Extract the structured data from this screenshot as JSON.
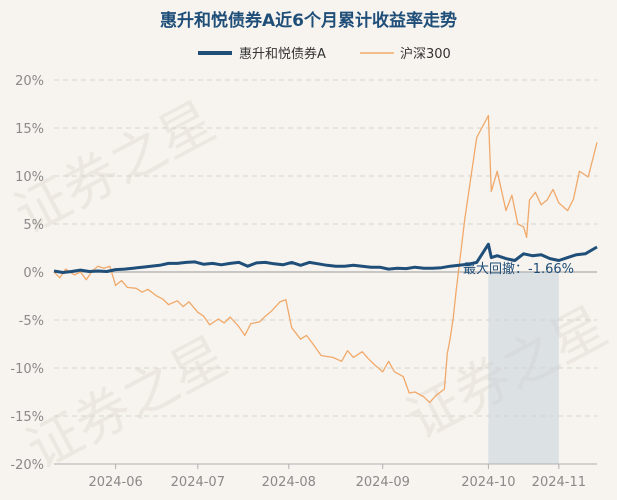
{
  "chart_data": {
    "type": "line",
    "title": "惠升和悦债券A近6个月累计收益率走势",
    "watermark": "证券之星",
    "ylim": [
      -20,
      20
    ],
    "yticks": [
      20,
      15,
      10,
      5,
      0,
      -5,
      -10,
      -15,
      -20
    ],
    "ytick_format": "{v}%",
    "x_start": "2024-05-13",
    "x_end": "2024-11-14",
    "xticks": [
      {
        "date": "2024-06-03",
        "label": "2024-06"
      },
      {
        "date": "2024-07-01",
        "label": "2024-07"
      },
      {
        "date": "2024-08-01",
        "label": "2024-08"
      },
      {
        "date": "2024-09-02",
        "label": "2024-09"
      },
      {
        "date": "2024-10-08",
        "label": "2024-10"
      },
      {
        "date": "2024-11-01",
        "label": "2024-11"
      }
    ],
    "series": [
      {
        "name": "惠升和悦债券A",
        "color": "#1f4e79",
        "points": [
          [
            "2024-05-13",
            0.1
          ],
          [
            "2024-05-16",
            -0.05
          ],
          [
            "2024-05-19",
            0.05
          ],
          [
            "2024-05-22",
            0.2
          ],
          [
            "2024-05-25",
            0.05
          ],
          [
            "2024-05-28",
            0.1
          ],
          [
            "2024-05-31",
            0.05
          ],
          [
            "2024-06-03",
            0.25
          ],
          [
            "2024-06-06",
            0.3
          ],
          [
            "2024-06-09",
            0.4
          ],
          [
            "2024-06-12",
            0.5
          ],
          [
            "2024-06-15",
            0.6
          ],
          [
            "2024-06-18",
            0.7
          ],
          [
            "2024-06-21",
            0.9
          ],
          [
            "2024-06-24",
            0.9
          ],
          [
            "2024-06-27",
            1.0
          ],
          [
            "2024-06-30",
            1.05
          ],
          [
            "2024-07-03",
            0.8
          ],
          [
            "2024-07-06",
            0.9
          ],
          [
            "2024-07-09",
            0.75
          ],
          [
            "2024-07-12",
            0.9
          ],
          [
            "2024-07-15",
            1.0
          ],
          [
            "2024-07-18",
            0.6
          ],
          [
            "2024-07-21",
            0.95
          ],
          [
            "2024-07-24",
            1.0
          ],
          [
            "2024-07-27",
            0.85
          ],
          [
            "2024-07-30",
            0.75
          ],
          [
            "2024-08-02",
            1.0
          ],
          [
            "2024-08-05",
            0.7
          ],
          [
            "2024-08-08",
            1.0
          ],
          [
            "2024-08-11",
            0.85
          ],
          [
            "2024-08-14",
            0.7
          ],
          [
            "2024-08-17",
            0.6
          ],
          [
            "2024-08-20",
            0.6
          ],
          [
            "2024-08-23",
            0.7
          ],
          [
            "2024-08-26",
            0.6
          ],
          [
            "2024-08-29",
            0.5
          ],
          [
            "2024-09-01",
            0.5
          ],
          [
            "2024-09-04",
            0.3
          ],
          [
            "2024-09-07",
            0.4
          ],
          [
            "2024-09-10",
            0.35
          ],
          [
            "2024-09-13",
            0.5
          ],
          [
            "2024-09-16",
            0.4
          ],
          [
            "2024-09-19",
            0.4
          ],
          [
            "2024-09-22",
            0.45
          ],
          [
            "2024-09-25",
            0.6
          ],
          [
            "2024-09-28",
            0.7
          ],
          [
            "2024-10-01",
            0.8
          ],
          [
            "2024-10-04",
            1.0
          ],
          [
            "2024-10-08",
            2.9
          ],
          [
            "2024-10-09",
            1.5
          ],
          [
            "2024-10-11",
            1.7
          ],
          [
            "2024-10-14",
            1.4
          ],
          [
            "2024-10-17",
            1.2
          ],
          [
            "2024-10-20",
            1.9
          ],
          [
            "2024-10-23",
            1.7
          ],
          [
            "2024-10-26",
            1.8
          ],
          [
            "2024-10-29",
            1.4
          ],
          [
            "2024-11-01",
            1.2
          ],
          [
            "2024-11-04",
            1.5
          ],
          [
            "2024-11-07",
            1.8
          ],
          [
            "2024-11-10",
            1.9
          ],
          [
            "2024-11-14",
            2.6
          ]
        ]
      },
      {
        "name": "沪深300",
        "color": "#f0a96b",
        "points": [
          [
            "2024-05-13",
            0.0
          ],
          [
            "2024-05-15",
            -0.6
          ],
          [
            "2024-05-17",
            0.3
          ],
          [
            "2024-05-20",
            -0.3
          ],
          [
            "2024-05-22",
            0.0
          ],
          [
            "2024-05-24",
            -0.8
          ],
          [
            "2024-05-26",
            0.1
          ],
          [
            "2024-05-28",
            0.6
          ],
          [
            "2024-05-30",
            0.4
          ],
          [
            "2024-06-01",
            0.6
          ],
          [
            "2024-06-03",
            -1.4
          ],
          [
            "2024-06-05",
            -0.9
          ],
          [
            "2024-06-07",
            -1.6
          ],
          [
            "2024-06-10",
            -1.7
          ],
          [
            "2024-06-12",
            -2.1
          ],
          [
            "2024-06-14",
            -1.8
          ],
          [
            "2024-06-17",
            -2.5
          ],
          [
            "2024-06-19",
            -2.8
          ],
          [
            "2024-06-21",
            -3.4
          ],
          [
            "2024-06-24",
            -3.0
          ],
          [
            "2024-06-26",
            -3.6
          ],
          [
            "2024-06-28",
            -3.1
          ],
          [
            "2024-07-01",
            -4.2
          ],
          [
            "2024-07-03",
            -4.6
          ],
          [
            "2024-07-05",
            -5.5
          ],
          [
            "2024-07-08",
            -4.9
          ],
          [
            "2024-07-10",
            -5.3
          ],
          [
            "2024-07-12",
            -4.7
          ],
          [
            "2024-07-15",
            -5.7
          ],
          [
            "2024-07-17",
            -6.6
          ],
          [
            "2024-07-19",
            -5.4
          ],
          [
            "2024-07-22",
            -5.2
          ],
          [
            "2024-07-24",
            -4.6
          ],
          [
            "2024-07-26",
            -4.1
          ],
          [
            "2024-07-29",
            -3.1
          ],
          [
            "2024-07-31",
            -2.9
          ],
          [
            "2024-08-02",
            -5.8
          ],
          [
            "2024-08-05",
            -7.0
          ],
          [
            "2024-08-07",
            -6.6
          ],
          [
            "2024-08-09",
            -7.4
          ],
          [
            "2024-08-12",
            -8.7
          ],
          [
            "2024-08-14",
            -8.8
          ],
          [
            "2024-08-16",
            -8.9
          ],
          [
            "2024-08-19",
            -9.3
          ],
          [
            "2024-08-21",
            -8.2
          ],
          [
            "2024-08-23",
            -8.9
          ],
          [
            "2024-08-26",
            -8.3
          ],
          [
            "2024-08-28",
            -9.0
          ],
          [
            "2024-08-30",
            -9.6
          ],
          [
            "2024-09-02",
            -10.4
          ],
          [
            "2024-09-04",
            -9.3
          ],
          [
            "2024-09-06",
            -10.4
          ],
          [
            "2024-09-09",
            -10.9
          ],
          [
            "2024-09-11",
            -12.6
          ],
          [
            "2024-09-13",
            -12.5
          ],
          [
            "2024-09-16",
            -13.0
          ],
          [
            "2024-09-18",
            -13.6
          ],
          [
            "2024-09-20",
            -12.9
          ],
          [
            "2024-09-23",
            -12.2
          ],
          [
            "2024-09-24",
            -8.5
          ],
          [
            "2024-09-25",
            -6.9
          ],
          [
            "2024-09-26",
            -4.8
          ],
          [
            "2024-09-27",
            -2.0
          ],
          [
            "2024-09-30",
            5.6
          ],
          [
            "2024-10-04",
            14.0
          ],
          [
            "2024-10-08",
            16.3
          ],
          [
            "2024-10-09",
            8.4
          ],
          [
            "2024-10-11",
            10.5
          ],
          [
            "2024-10-14",
            6.4
          ],
          [
            "2024-10-16",
            8.0
          ],
          [
            "2024-10-18",
            5.0
          ],
          [
            "2024-10-20",
            4.7
          ],
          [
            "2024-10-21",
            3.6
          ],
          [
            "2024-10-22",
            7.5
          ],
          [
            "2024-10-24",
            8.3
          ],
          [
            "2024-10-26",
            7.0
          ],
          [
            "2024-10-28",
            7.5
          ],
          [
            "2024-10-30",
            8.6
          ],
          [
            "2024-11-01",
            7.2
          ],
          [
            "2024-11-04",
            6.4
          ],
          [
            "2024-11-06",
            7.6
          ],
          [
            "2024-11-08",
            10.5
          ],
          [
            "2024-11-11",
            9.9
          ],
          [
            "2024-11-14",
            13.5
          ]
        ]
      }
    ],
    "drawdown": {
      "label": "最大回撤：-1.66%",
      "start": "2024-10-08",
      "end": "2024-11-01"
    }
  }
}
